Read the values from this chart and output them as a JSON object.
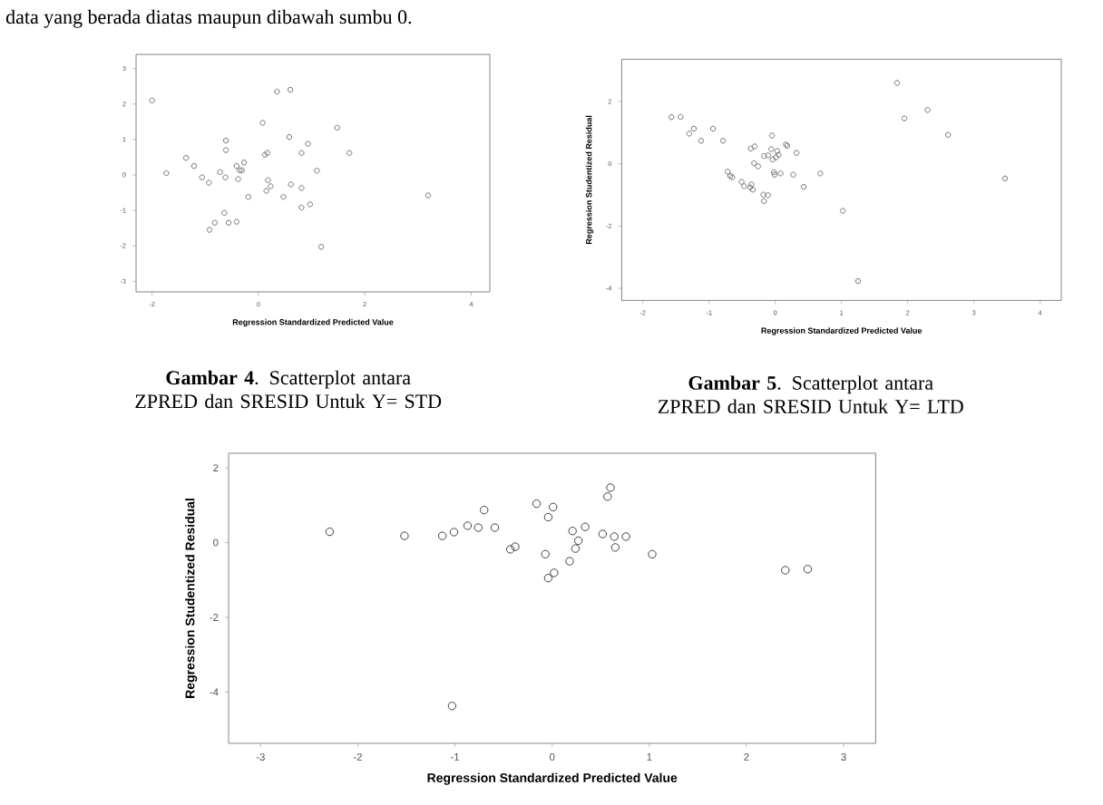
{
  "chart_data": [
    {
      "type": "scatter",
      "xlabel": "Regression Standardized Predicted Value",
      "marker": "circle",
      "color": "#707070",
      "x": [
        -2.0,
        -1.73,
        -1.36,
        -1.21,
        -1.06,
        -0.93,
        -0.92,
        -0.82,
        -0.72,
        -0.64,
        -0.62,
        -0.61,
        -0.61,
        -0.56,
        -0.41,
        -0.41,
        -0.38,
        -0.35,
        -0.31,
        -0.27,
        -0.19,
        0.08,
        0.12,
        0.17,
        0.18,
        0.23,
        0.15,
        0.35,
        0.6,
        0.58,
        0.61,
        0.47,
        0.81,
        0.93,
        0.81,
        0.81,
        0.97,
        1.1,
        1.18,
        1.48,
        1.71,
        3.19
      ],
      "values": [
        2.1,
        0.05,
        0.48,
        0.25,
        -0.07,
        -0.22,
        -1.55,
        -1.35,
        0.08,
        -1.07,
        -0.07,
        0.97,
        0.7,
        -1.35,
        -1.32,
        0.25,
        -0.12,
        0.13,
        0.13,
        0.35,
        -0.62,
        1.47,
        0.57,
        0.62,
        -0.15,
        -0.32,
        -0.45,
        2.35,
        2.4,
        1.07,
        -0.27,
        -0.62,
        0.62,
        0.88,
        -0.37,
        -0.92,
        -0.83,
        0.12,
        -2.03,
        1.33,
        0.62,
        -0.58
      ],
      "xlim": [
        -2.3,
        4.35
      ],
      "xticks": [
        -2,
        0,
        2,
        4
      ],
      "ylim": [
        -3.3,
        3.4
      ],
      "yticks": [
        -3,
        -2,
        -1,
        0,
        1,
        2,
        3
      ],
      "annotations": [
        "data yang berada diatas maupun dibawah sumbu 0.",
        "**Gambar 4**. Scatterplot antara ZPRED dan SRESID Untuk Y= STD"
      ]
    },
    {
      "type": "scatter",
      "xlabel": "Regression Standardized Predicted Value",
      "ylabel": "Regression Studentized Residual",
      "marker": "circle",
      "color": "#707070",
      "x": [
        -1.57,
        -1.43,
        -1.3,
        -1.23,
        -1.12,
        -0.94,
        -0.79,
        -0.72,
        -0.68,
        -0.65,
        -0.51,
        -0.47,
        -0.38,
        -0.36,
        -0.34,
        -0.37,
        -0.31,
        -0.32,
        -0.26,
        -0.18,
        -0.17,
        -0.11,
        -0.17,
        -0.11,
        -0.06,
        -0.05,
        -0.04,
        -0.02,
        -0.01,
        0.01,
        0.03,
        0.05,
        0.08,
        0.16,
        0.18,
        0.27,
        0.32,
        0.43,
        0.68,
        1.02,
        1.25,
        1.84,
        1.95,
        2.3,
        2.61,
        3.47
      ],
      "values": [
        1.5,
        1.51,
        0.97,
        1.13,
        0.74,
        1.13,
        0.74,
        -0.25,
        -0.39,
        -0.43,
        -0.58,
        -0.72,
        -0.76,
        -0.66,
        -0.83,
        0.49,
        0.56,
        0.02,
        -0.08,
        -0.99,
        -1.2,
        -1.01,
        0.25,
        0.27,
        0.47,
        0.91,
        0.14,
        -0.27,
        -0.35,
        0.21,
        0.41,
        0.29,
        -0.31,
        0.62,
        0.58,
        -0.35,
        0.35,
        -0.74,
        -0.31,
        -1.51,
        -3.77,
        2.6,
        1.46,
        1.73,
        0.93,
        -0.47
      ],
      "xlim": [
        -2.32,
        4.32
      ],
      "xticks": [
        -2,
        -1,
        0,
        1,
        2,
        3,
        4
      ],
      "ylim": [
        -4.39,
        3.36
      ],
      "yticks": [
        -4,
        -2,
        0,
        2
      ],
      "annotations": [
        "**Gambar 5**. Scatterplot antara ZPRED dan SRESID Untuk Y= LTD"
      ]
    },
    {
      "type": "scatter",
      "xlabel": "Regression Standardized Predicted Value",
      "ylabel": "Regression Studentized Residual",
      "marker": "circle",
      "color": "#404040",
      "x": [
        -2.29,
        -1.52,
        -1.13,
        -1.01,
        -1.03,
        -0.87,
        -0.76,
        -0.7,
        -0.59,
        -0.43,
        -0.38,
        -0.16,
        -0.07,
        -0.04,
        -0.04,
        0.01,
        0.02,
        0.18,
        0.21,
        0.24,
        0.27,
        0.34,
        0.52,
        0.57,
        0.6,
        0.64,
        0.65,
        0.76,
        1.03,
        2.4,
        2.63
      ],
      "values": [
        0.29,
        0.18,
        0.18,
        0.28,
        -4.37,
        0.45,
        0.4,
        0.87,
        0.4,
        -0.18,
        -0.11,
        1.04,
        -0.31,
        -0.95,
        0.68,
        0.95,
        -0.81,
        -0.5,
        0.31,
        -0.16,
        0.05,
        0.42,
        0.23,
        1.23,
        1.47,
        0.16,
        -0.13,
        0.16,
        -0.31,
        -0.74,
        -0.71
      ],
      "xlim": [
        -3.33,
        3.33
      ],
      "xticks": [
        -3,
        -2,
        -1,
        0,
        1,
        2,
        3
      ],
      "ylim": [
        -5.37,
        2.39
      ],
      "yticks": [
        -4,
        -2,
        0,
        2
      ]
    }
  ]
}
